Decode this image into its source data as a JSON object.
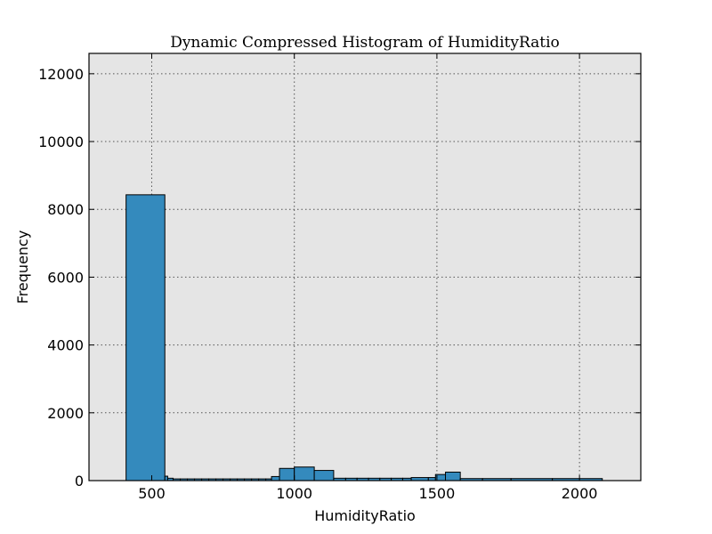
{
  "chart_data": {
    "type": "bar",
    "title": "Dynamic Compressed Histogram of HumidityRatio",
    "xlabel": "HumidityRatio",
    "ylabel": "Frequency",
    "xlim": [
      280,
      2215
    ],
    "ylim": [
      0,
      12600
    ],
    "xticks": [
      500,
      1000,
      1500,
      2000
    ],
    "yticks": [
      0,
      2000,
      4000,
      6000,
      8000,
      10000,
      12000
    ],
    "grid": true,
    "colors": {
      "bar": "#348ABD",
      "background": "#E5E5E5"
    },
    "bins": [
      {
        "start": 410,
        "end": 546,
        "count": 8430
      },
      {
        "start": 546,
        "end": 556,
        "count": 130
      },
      {
        "start": 556,
        "end": 575,
        "count": 70
      },
      {
        "start": 575,
        "end": 600,
        "count": 50
      },
      {
        "start": 600,
        "end": 625,
        "count": 50
      },
      {
        "start": 625,
        "end": 650,
        "count": 50
      },
      {
        "start": 650,
        "end": 675,
        "count": 50
      },
      {
        "start": 675,
        "end": 700,
        "count": 50
      },
      {
        "start": 700,
        "end": 725,
        "count": 50
      },
      {
        "start": 725,
        "end": 750,
        "count": 50
      },
      {
        "start": 750,
        "end": 775,
        "count": 50
      },
      {
        "start": 775,
        "end": 800,
        "count": 50
      },
      {
        "start": 800,
        "end": 825,
        "count": 50
      },
      {
        "start": 825,
        "end": 850,
        "count": 50
      },
      {
        "start": 850,
        "end": 875,
        "count": 50
      },
      {
        "start": 875,
        "end": 900,
        "count": 50
      },
      {
        "start": 900,
        "end": 920,
        "count": 50
      },
      {
        "start": 920,
        "end": 948,
        "count": 120
      },
      {
        "start": 948,
        "end": 1000,
        "count": 360
      },
      {
        "start": 1000,
        "end": 1070,
        "count": 400
      },
      {
        "start": 1070,
        "end": 1138,
        "count": 300
      },
      {
        "start": 1138,
        "end": 1180,
        "count": 70
      },
      {
        "start": 1180,
        "end": 1220,
        "count": 70
      },
      {
        "start": 1220,
        "end": 1260,
        "count": 70
      },
      {
        "start": 1260,
        "end": 1300,
        "count": 70
      },
      {
        "start": 1300,
        "end": 1340,
        "count": 70
      },
      {
        "start": 1340,
        "end": 1380,
        "count": 70
      },
      {
        "start": 1380,
        "end": 1410,
        "count": 70
      },
      {
        "start": 1410,
        "end": 1470,
        "count": 90
      },
      {
        "start": 1470,
        "end": 1495,
        "count": 90
      },
      {
        "start": 1495,
        "end": 1530,
        "count": 180
      },
      {
        "start": 1530,
        "end": 1582,
        "count": 250
      },
      {
        "start": 1582,
        "end": 1660,
        "count": 60
      },
      {
        "start": 1660,
        "end": 1760,
        "count": 60
      },
      {
        "start": 1760,
        "end": 1905,
        "count": 60
      },
      {
        "start": 1905,
        "end": 2080,
        "count": 60
      }
    ]
  }
}
